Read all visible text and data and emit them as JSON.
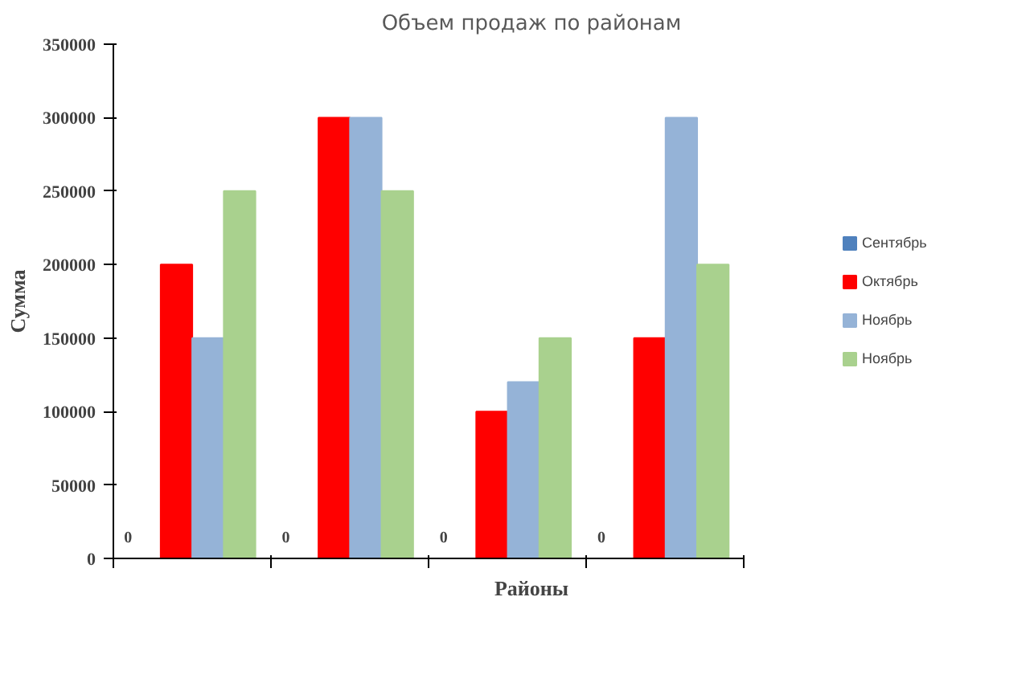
{
  "chart_data": {
    "type": "bar",
    "title": "Объем продаж по районам",
    "xlabel": "Районы",
    "ylabel": "Сумма",
    "categories": [
      null,
      null,
      null,
      null
    ],
    "series": [
      {
        "name": "Сентябрь",
        "color": "#4f81bd",
        "values": [
          0,
          0,
          0,
          0
        ],
        "value_labels": [
          "0",
          "0",
          "0",
          "0"
        ]
      },
      {
        "name": "Октябрь",
        "color": "#ff0000",
        "values": [
          200000,
          300000,
          100000,
          150000
        ]
      },
      {
        "name": "Ноябрь",
        "color": "#95b3d7",
        "values": [
          150000,
          300000,
          120000,
          300000
        ]
      },
      {
        "name": "Ноябрь",
        "color": "#a9d18e",
        "values": [
          250000,
          250000,
          150000,
          200000
        ]
      }
    ],
    "ylim": [
      0,
      350000
    ],
    "yticks": [
      0,
      50000,
      100000,
      150000,
      200000,
      250000,
      300000,
      350000
    ],
    "grid": false,
    "legend": "right"
  }
}
